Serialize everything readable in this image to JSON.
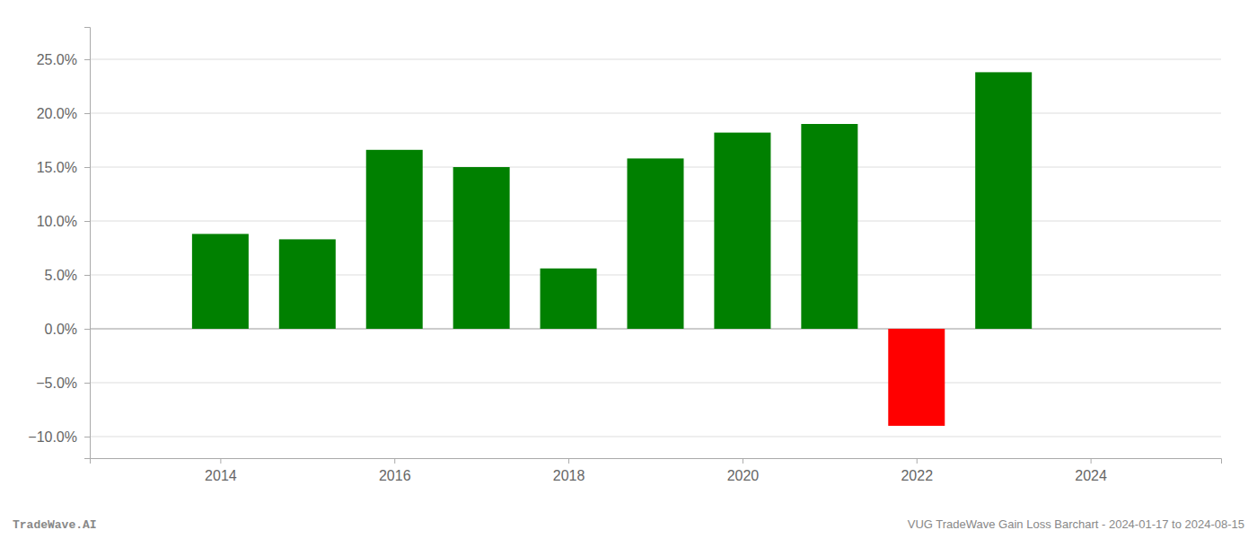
{
  "chart_data": {
    "type": "bar",
    "x": [
      2014,
      2015,
      2016,
      2017,
      2018,
      2019,
      2020,
      2021,
      2022,
      2023
    ],
    "values": [
      0.088,
      0.083,
      0.166,
      0.15,
      0.056,
      0.158,
      0.182,
      0.19,
      -0.09,
      0.238
    ],
    "colors": [
      "#008000",
      "#008000",
      "#008000",
      "#008000",
      "#008000",
      "#008000",
      "#008000",
      "#008000",
      "#ff0000",
      "#008000"
    ],
    "xlim": [
      2012.5,
      2025.5
    ],
    "xticks": [
      2014,
      2016,
      2018,
      2020,
      2022,
      2024
    ],
    "ylim": [
      -0.12,
      0.28
    ],
    "yticks": [
      {
        "value": -0.1,
        "label": "−10.0%"
      },
      {
        "value": -0.05,
        "label": "−5.0%"
      },
      {
        "value": 0.0,
        "label": "0.0%"
      },
      {
        "value": 0.05,
        "label": "5.0%"
      },
      {
        "value": 0.1,
        "label": "10.0%"
      },
      {
        "value": 0.15,
        "label": "15.0%"
      },
      {
        "value": 0.2,
        "label": "20.0%"
      },
      {
        "value": 0.25,
        "label": "25.0%"
      }
    ],
    "grid": true,
    "annotations": [
      "TradeWave.AI",
      "VUG TradeWave Gain Loss Barchart - 2024-01-17 to 2024-08-15"
    ]
  }
}
